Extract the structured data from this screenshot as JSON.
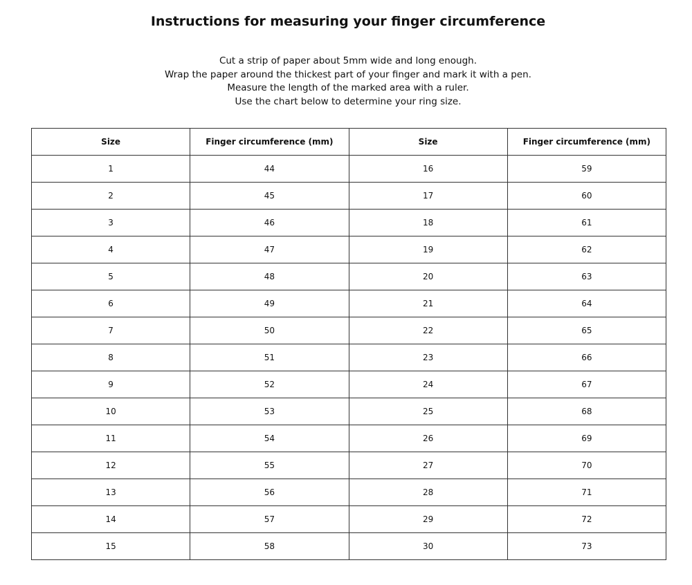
{
  "header": {
    "title": "Instructions for measuring your finger circumference",
    "lines": [
      "Cut a strip of paper about 5mm wide and long enough.",
      "Wrap the paper around the thickest part of your finger and mark it with a pen.",
      "Measure the length of the marked area with a ruler.",
      "Use the chart below to determine your ring size."
    ]
  },
  "table": {
    "columns": [
      "Size",
      "Finger circumference (mm)",
      "Size",
      "Finger circumference (mm)"
    ],
    "rows": [
      [
        1,
        44,
        16,
        59
      ],
      [
        2,
        45,
        17,
        60
      ],
      [
        3,
        46,
        18,
        61
      ],
      [
        4,
        47,
        19,
        62
      ],
      [
        5,
        48,
        20,
        63
      ],
      [
        6,
        49,
        21,
        64
      ],
      [
        7,
        50,
        22,
        65
      ],
      [
        8,
        51,
        23,
        66
      ],
      [
        9,
        52,
        24,
        67
      ],
      [
        10,
        53,
        25,
        68
      ],
      [
        11,
        54,
        26,
        69
      ],
      [
        12,
        55,
        27,
        70
      ],
      [
        13,
        56,
        28,
        71
      ],
      [
        14,
        57,
        29,
        72
      ],
      [
        15,
        58,
        30,
        73
      ]
    ]
  }
}
